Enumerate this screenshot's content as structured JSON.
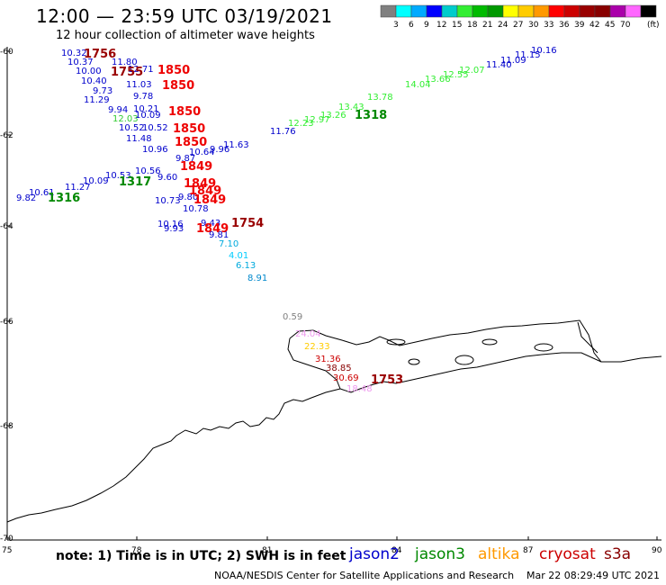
{
  "header": {
    "title": "12:00 — 23:59 UTC 03/19/2021",
    "subtitle": "12 hour collection of altimeter wave heights"
  },
  "legend": {
    "colors": [
      "#808080",
      "#00ffff",
      "#00aaff",
      "#0000ff",
      "#00cccc",
      "#33ee33",
      "#00bb00",
      "#009900",
      "#ffff00",
      "#ffcc00",
      "#ff9900",
      "#ff0000",
      "#cc0000",
      "#990000",
      "#880000",
      "#aa00aa",
      "#ff66ff",
      "#000000"
    ],
    "labels": [
      "3",
      "6",
      "9",
      "12",
      "15",
      "18",
      "21",
      "24",
      "27",
      "30",
      "33",
      "36",
      "39",
      "42",
      "45",
      "70",
      "(ft)"
    ]
  },
  "axes": {
    "lon_ticks": [
      "75",
      "78",
      "81",
      "84",
      "87",
      "90"
    ],
    "lat_ticks": [
      "-60",
      "-62",
      "-64",
      "-66",
      "-68",
      "-70"
    ]
  },
  "observations": [
    {
      "t": "10.32",
      "c": "#0000cc"
    },
    {
      "t": "10.37",
      "c": "#0000cc"
    },
    {
      "t": "10.00",
      "c": "#0000cc"
    },
    {
      "t": "10.40",
      "c": "#0000cc"
    },
    {
      "t": "9.73",
      "c": "#0000cc"
    },
    {
      "t": "11.29",
      "c": "#0000cc"
    },
    {
      "t": "9.94",
      "c": "#0000cc"
    },
    {
      "t": "12.03",
      "c": "#33cc33"
    },
    {
      "t": "10.21",
      "c": "#0000cc"
    },
    {
      "t": "10.52",
      "c": "#0000cc"
    },
    {
      "t": "11.48",
      "c": "#0000cc"
    },
    {
      "t": "10.96",
      "c": "#0000cc"
    },
    {
      "t": "9.87",
      "c": "#0000cc"
    },
    {
      "t": "10.64",
      "c": "#0000cc"
    },
    {
      "t": "10.56",
      "c": "#0000cc"
    },
    {
      "t": "9.60",
      "c": "#0000cc"
    },
    {
      "t": "10.73",
      "c": "#0000cc"
    },
    {
      "t": "9.80",
      "c": "#0000cc"
    },
    {
      "t": "10.78",
      "c": "#0000cc"
    },
    {
      "t": "10.16",
      "c": "#0000cc"
    },
    {
      "t": "9.93",
      "c": "#0000cc"
    },
    {
      "t": "9.43",
      "c": "#0000cc"
    },
    {
      "t": "9.81",
      "c": "#0000cc"
    },
    {
      "t": "11.80",
      "c": "#0000cc"
    },
    {
      "t": "12.71",
      "c": "#0000cc"
    },
    {
      "t": "11.03",
      "c": "#0000cc"
    },
    {
      "t": "9.78",
      "c": "#0000cc"
    },
    {
      "t": "10.09",
      "c": "#0000cc"
    },
    {
      "t": "10.52",
      "c": "#0000cc"
    },
    {
      "t": "10.61",
      "c": "#0000cc"
    },
    {
      "t": "11.27",
      "c": "#0000cc"
    },
    {
      "t": "9.82",
      "c": "#0000cc"
    },
    {
      "t": "10.09",
      "c": "#0000cc"
    },
    {
      "t": "10.53",
      "c": "#0000cc"
    },
    {
      "t": "11.63",
      "c": "#0000cc"
    },
    {
      "t": "11.76",
      "c": "#0000cc"
    },
    {
      "t": "9.96",
      "c": "#0000cc"
    },
    {
      "t": "11.40",
      "c": "#0000cc"
    },
    {
      "t": "11.09",
      "c": "#0000cc"
    },
    {
      "t": "11.15",
      "c": "#0000cc"
    },
    {
      "t": "10.16",
      "c": "#0000cc"
    },
    {
      "t": "12.23",
      "c": "#33ee33"
    },
    {
      "t": "12.97",
      "c": "#33ee33"
    },
    {
      "t": "13.26",
      "c": "#33ee33"
    },
    {
      "t": "13.43",
      "c": "#33ee33"
    },
    {
      "t": "13.78",
      "c": "#33ee33"
    },
    {
      "t": "14.04",
      "c": "#33ee33"
    },
    {
      "t": "13.66",
      "c": "#33ee33"
    },
    {
      "t": "12.55",
      "c": "#33ee33"
    },
    {
      "t": "12.07",
      "c": "#33ee33"
    },
    {
      "t": "7.10",
      "c": "#00aadd"
    },
    {
      "t": "4.01",
      "c": "#00ccff"
    },
    {
      "t": "6.13",
      "c": "#00aadd"
    },
    {
      "t": "8.91",
      "c": "#0088cc"
    },
    {
      "t": "0.59",
      "c": "#808080"
    },
    {
      "t": "24.04",
      "c": "#ee99ee"
    },
    {
      "t": "22.33",
      "c": "#ffcc00"
    },
    {
      "t": "31.36",
      "c": "#cc0000"
    },
    {
      "t": "38.85",
      "c": "#880000"
    },
    {
      "t": "30.69",
      "c": "#cc0000"
    },
    {
      "t": "18.48",
      "c": "#ee99ee"
    }
  ],
  "pass_times": [
    {
      "t": "1756",
      "c": "#990000"
    },
    {
      "t": "1755",
      "c": "#990000"
    },
    {
      "t": "1850",
      "c": "#ee0000"
    },
    {
      "t": "1850",
      "c": "#ee0000"
    },
    {
      "t": "1850",
      "c": "#ee0000"
    },
    {
      "t": "1850",
      "c": "#ee0000"
    },
    {
      "t": "1850",
      "c": "#ee0000"
    },
    {
      "t": "1849",
      "c": "#ee0000"
    },
    {
      "t": "1849",
      "c": "#ee0000"
    },
    {
      "t": "1849",
      "c": "#ee0000"
    },
    {
      "t": "1849",
      "c": "#ee0000"
    },
    {
      "t": "1849",
      "c": "#ee0000"
    },
    {
      "t": "1754",
      "c": "#990000"
    },
    {
      "t": "1318",
      "c": "#008800"
    },
    {
      "t": "1317",
      "c": "#008800"
    },
    {
      "t": "1316",
      "c": "#008800"
    },
    {
      "t": "1753",
      "c": "#990000"
    }
  ],
  "footer": {
    "note": "note: 1) Time is in UTC; 2) SWH is in feet",
    "credit": "NOAA/NESDIS Center for Satellite Applications and Research",
    "timestamp": "Mar 22 08:29:49 UTC 2021",
    "satellites": [
      {
        "name": "jason2",
        "color": "#0000cc"
      },
      {
        "name": "jason3",
        "color": "#008800"
      },
      {
        "name": "altika",
        "color": "#ff9900"
      },
      {
        "name": "cryosat",
        "color": "#cc0000"
      },
      {
        "name": "s3a",
        "color": "#880000"
      }
    ]
  }
}
